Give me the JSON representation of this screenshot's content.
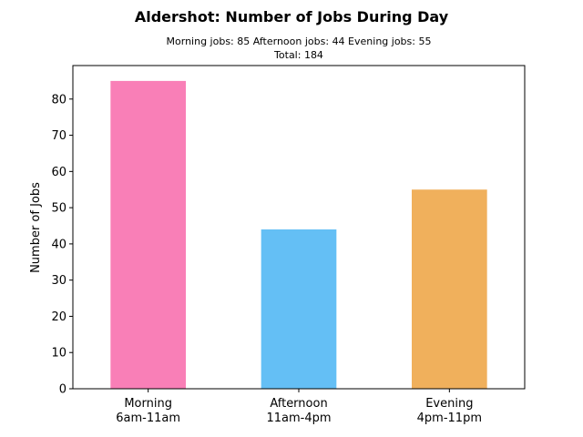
{
  "chart_data": {
    "type": "bar",
    "title": "Aldershot: Number of Jobs During Day",
    "subtitle_line1": "Morning jobs: 85  Afternoon jobs: 44  Evening jobs: 55",
    "subtitle_line2": "Total: 184",
    "xlabel": "",
    "ylabel": "Number of Jobs",
    "categories": [
      [
        "Morning",
        "6am-11am"
      ],
      [
        "Afternoon",
        "11am-4pm"
      ],
      [
        "Evening",
        "4pm-11pm"
      ]
    ],
    "values": [
      85,
      44,
      55
    ],
    "colors": [
      "#f97fb7",
      "#64bff5",
      "#f0b05c"
    ],
    "ylim": [
      0,
      89.25
    ],
    "yticks": [
      0,
      10,
      20,
      30,
      40,
      50,
      60,
      70,
      80
    ],
    "grid": false,
    "legend": "none"
  }
}
